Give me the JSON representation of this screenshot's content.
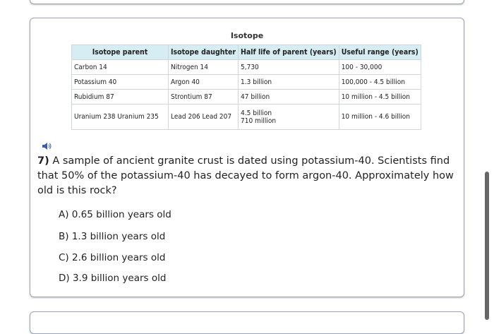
{
  "table": {
    "caption": "Isotope",
    "headers": [
      "Isotope parent",
      "Isotope daughter",
      "Half life of parent (years)",
      "Useful range (years)"
    ],
    "rows": [
      [
        "Carbon 14",
        "Nitrogen 14",
        "5,730",
        "100 - 30,000"
      ],
      [
        "Potassium 40",
        "Argon 40",
        "1.3 billion",
        "100,000 - 4.5 billion"
      ],
      [
        "Rubidium 87",
        "Strontium 87",
        "47 billion",
        "10 million - 4.5 billion"
      ],
      [
        "Uranium 238 Uranium 235",
        "Lead 206 Lead 207",
        "4.5 billion",
        "10 million - 4.6 billion"
      ]
    ],
    "extra_halflife": "710 million"
  },
  "question": {
    "number": "7)",
    "text": " A sample of ancient granite crust is dated using potassium-40. Scientists find that 50% of the potassium-40 has decayed to form argon-40. Approximately how old is this rock?",
    "options": [
      "A) 0.65 billion years old",
      "B) 1.3 billion years old",
      "C) 2.6 billion years old",
      "D) 3.9 billion years old"
    ]
  },
  "icons": {
    "speaker": "speaker-icon"
  }
}
